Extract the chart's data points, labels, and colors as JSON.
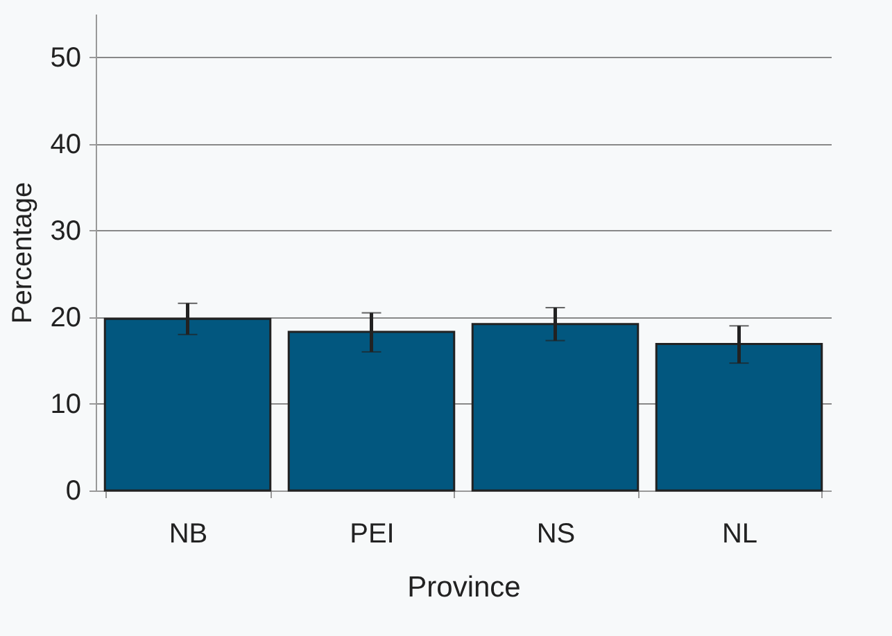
{
  "chart_data": {
    "type": "bar",
    "xlabel": "Province",
    "ylabel": "Percentage",
    "categories": [
      "NB",
      "PEI",
      "NS",
      "NL"
    ],
    "values": [
      19.8,
      18.3,
      19.2,
      16.9
    ],
    "errors": [
      [
        18.0,
        21.6
      ],
      [
        16.0,
        20.5
      ],
      [
        17.3,
        21.1
      ],
      [
        14.7,
        19.0
      ]
    ],
    "color": "#02577f",
    "ylim": [
      0,
      55
    ],
    "yticks": [
      0,
      10,
      20,
      30,
      40,
      50
    ],
    "grid": "y"
  }
}
